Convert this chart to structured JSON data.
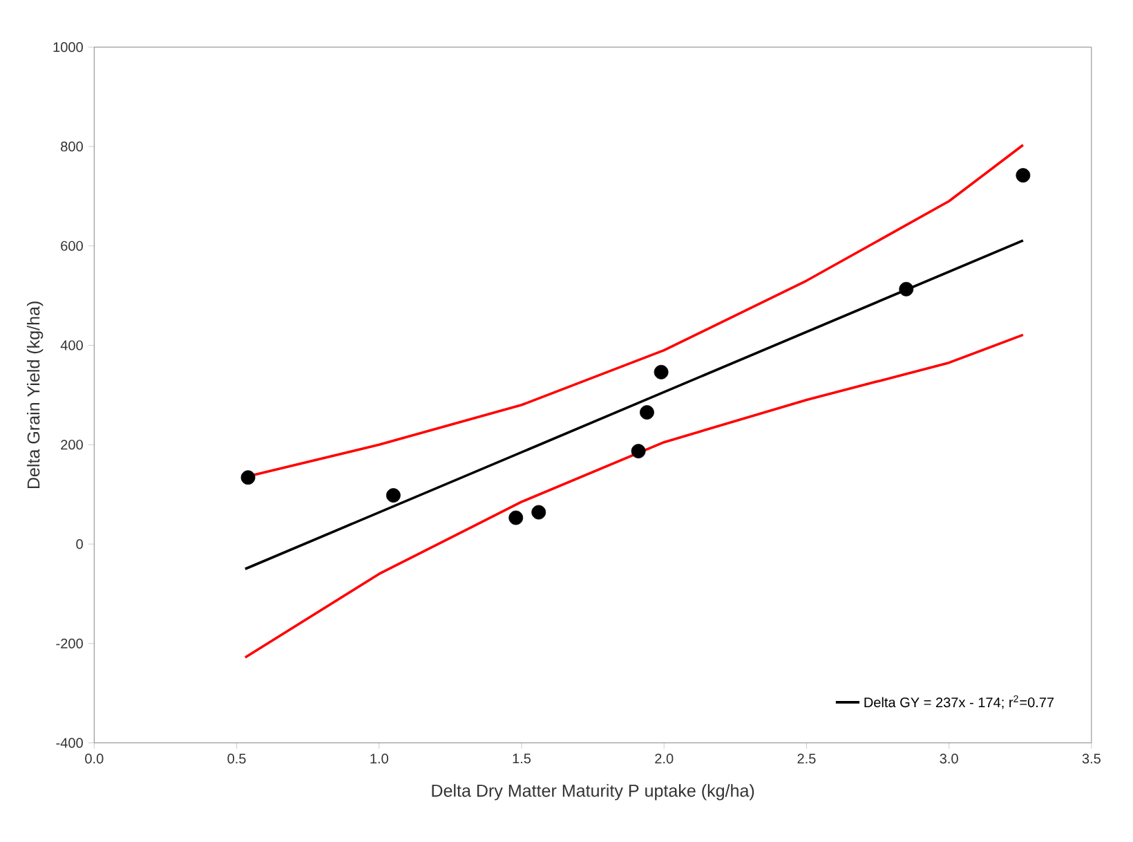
{
  "chart_data": {
    "type": "scatter",
    "xlabel": "Delta Dry Matter Maturity P uptake (kg/ha)",
    "ylabel": "Delta Grain Yield (kg/ha)",
    "xlim": [
      0,
      3.5
    ],
    "ylim": [
      -400,
      1000
    ],
    "xticks": [
      {
        "value": 0,
        "label": "0.0"
      },
      {
        "value": 0.5,
        "label": "0.5"
      },
      {
        "value": 1,
        "label": "1.0"
      },
      {
        "value": 1.5,
        "label": "1.5"
      },
      {
        "value": 2,
        "label": "2.0"
      },
      {
        "value": 2.5,
        "label": "2.5"
      },
      {
        "value": 3,
        "label": "3.0"
      },
      {
        "value": 3.5,
        "label": "3.5"
      }
    ],
    "yticks": [
      -400,
      -200,
      0,
      200,
      400,
      600,
      800,
      1000
    ],
    "grid": false,
    "legend": "bottom right",
    "series": [
      {
        "marker": "circle",
        "color": "#000000",
        "x": [
          0.54,
          1.05,
          1.48,
          1.56,
          1.91,
          1.94,
          1.99,
          2.85,
          3.26
        ],
        "values": [
          134,
          98,
          53,
          64,
          187,
          265,
          346,
          513,
          742
        ]
      },
      {
        "type": "line",
        "marker": "none",
        "name": "Delta GY = 237x - 174; r$^{2}$=0.77",
        "color": "#000000",
        "x": [
          0.53,
          3.26
        ],
        "values": [
          -50,
          611
        ]
      },
      {
        "type": "line",
        "marker": "none",
        "color": "#ff0000",
        "x": [
          0.53,
          1.0,
          1.5,
          2.0,
          2.5,
          3.0,
          3.26
        ],
        "values": [
          135,
          200,
          280,
          390,
          530,
          690,
          803
        ]
      },
      {
        "type": "line",
        "marker": "none",
        "color": "#ff0000",
        "x": [
          0.53,
          1.0,
          1.5,
          2.0,
          2.5,
          3.0,
          3.26
        ],
        "values": [
          -228,
          -60,
          85,
          205,
          290,
          365,
          421
        ]
      }
    ]
  }
}
